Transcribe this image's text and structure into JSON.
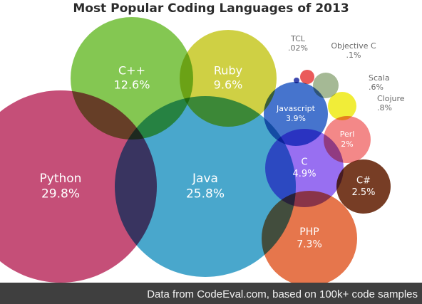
{
  "chart_data": {
    "type": "bubble",
    "title": "Most Popular Coding Languages of 2013",
    "series": [
      {
        "name": "Python",
        "value": 29.8,
        "label": "29.8%",
        "color": "#c0406d"
      },
      {
        "name": "Java",
        "value": 25.8,
        "label": "25.8%",
        "color": "#3aa0c8"
      },
      {
        "name": "C++",
        "value": 12.6,
        "label": "12.6%",
        "color": "#79c243"
      },
      {
        "name": "Ruby",
        "value": 9.6,
        "label": "9.6%",
        "color": "#cbcc34"
      },
      {
        "name": "PHP",
        "value": 7.3,
        "label": "7.3%",
        "color": "#e46a3d"
      },
      {
        "name": "C",
        "value": 4.9,
        "label": "4.9%",
        "color": "#8f63f0"
      },
      {
        "name": "Javascript",
        "value": 3.9,
        "label": "3.9%",
        "color": "#3668c9"
      },
      {
        "name": "C#",
        "value": 2.5,
        "label": "2.5%",
        "color": "#6b2d12"
      },
      {
        "name": "Perl",
        "value": 2,
        "label": "2%",
        "color": "#f27e7e"
      },
      {
        "name": "Clojure",
        "value": 0.8,
        "label": ".8%",
        "color": "#f0ec27"
      },
      {
        "name": "Scala",
        "value": 0.6,
        "label": ".6%",
        "color": "#9db38c"
      },
      {
        "name": "Objective C",
        "value": 0.1,
        "label": ".1%",
        "color": "#e84d4d"
      },
      {
        "name": "TCL",
        "value": 0.02,
        "label": ".02%",
        "color": "#2e3aa8"
      }
    ],
    "legend": "none",
    "grid": false
  },
  "footer": {
    "note": "Data from CodeEval.com, based on 100k+ code samples"
  }
}
